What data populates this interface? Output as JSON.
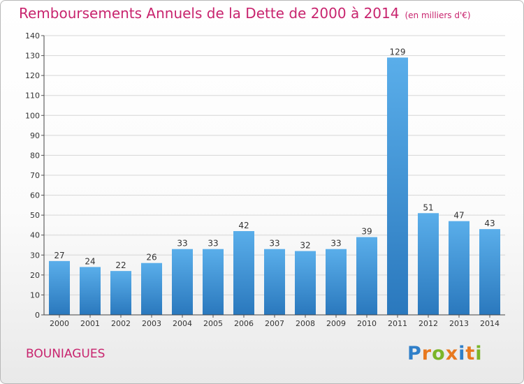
{
  "title": "Remboursements Annuels de la Dette de 2000 à 2014",
  "unit": "(en milliers d'€)",
  "commune": "BOUNIAGUES",
  "logo": {
    "text": "Proxiti",
    "letters": [
      {
        "ch": "P",
        "color": "#2f7fc9"
      },
      {
        "ch": "r",
        "color": "#e8791f"
      },
      {
        "ch": "o",
        "color": "#7bb529"
      },
      {
        "ch": "x",
        "color": "#e8791f"
      },
      {
        "ch": "i",
        "color": "#2f7fc9"
      },
      {
        "ch": "t",
        "color": "#e8791f"
      },
      {
        "ch": "i",
        "color": "#7bb529"
      }
    ]
  },
  "colors": {
    "title": "#c8246e",
    "bar_top": "#5aaeea",
    "bar_bottom": "#2a78bd",
    "grid": "#d6d6d6"
  },
  "chart_data": {
    "type": "bar",
    "title": "Remboursements Annuels de la Dette de 2000 à 2014",
    "subtitle": "(en milliers d'€)",
    "xlabel": "",
    "ylabel": "",
    "categories": [
      "2000",
      "2001",
      "2002",
      "2003",
      "2004",
      "2005",
      "2006",
      "2007",
      "2008",
      "2009",
      "2010",
      "2011",
      "2012",
      "2013",
      "2014"
    ],
    "values": [
      27,
      24,
      22,
      26,
      33,
      33,
      42,
      33,
      32,
      33,
      39,
      129,
      51,
      47,
      43
    ],
    "ylim": [
      0,
      140
    ],
    "yticks": [
      0,
      10,
      20,
      30,
      40,
      50,
      60,
      70,
      80,
      90,
      100,
      110,
      120,
      130,
      140
    ],
    "grid": true,
    "legend": "none"
  }
}
